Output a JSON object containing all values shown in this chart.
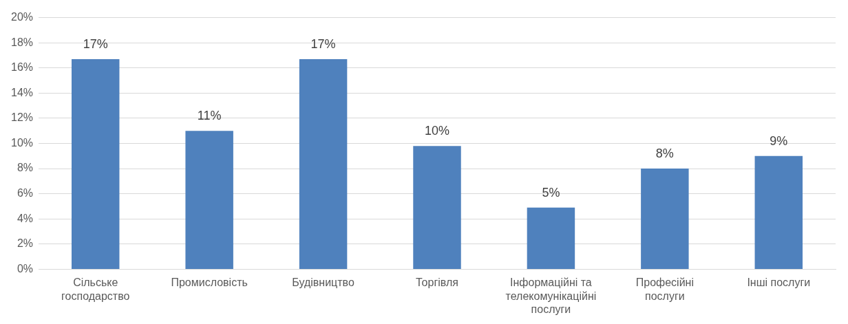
{
  "chart_data": {
    "type": "bar",
    "categories": [
      "Сільське господарство",
      "Промисловість",
      "Будівництво",
      "Торгівля",
      "Інформаційні та телекомунікаційні послуги",
      "Професійні послуги",
      "Інші послуги"
    ],
    "values": [
      16.7,
      11.0,
      16.7,
      9.8,
      4.9,
      8.0,
      9.0
    ],
    "value_labels": [
      "17%",
      "11%",
      "17%",
      "10%",
      "5%",
      "8%",
      "9%"
    ],
    "color": "#4f81bd",
    "ylim": [
      0,
      20
    ],
    "yticks": [
      {
        "value": 0,
        "label": "0%"
      },
      {
        "value": 2,
        "label": "2%"
      },
      {
        "value": 4,
        "label": "4%"
      },
      {
        "value": 6,
        "label": "6%"
      },
      {
        "value": 8,
        "label": "8%"
      },
      {
        "value": 10,
        "label": "10%"
      },
      {
        "value": 12,
        "label": "12%"
      },
      {
        "value": 14,
        "label": "14%"
      },
      {
        "value": 16,
        "label": "16%"
      },
      {
        "value": 18,
        "label": "18%"
      },
      {
        "value": 20,
        "label": "20%"
      }
    ],
    "grid": "y"
  }
}
